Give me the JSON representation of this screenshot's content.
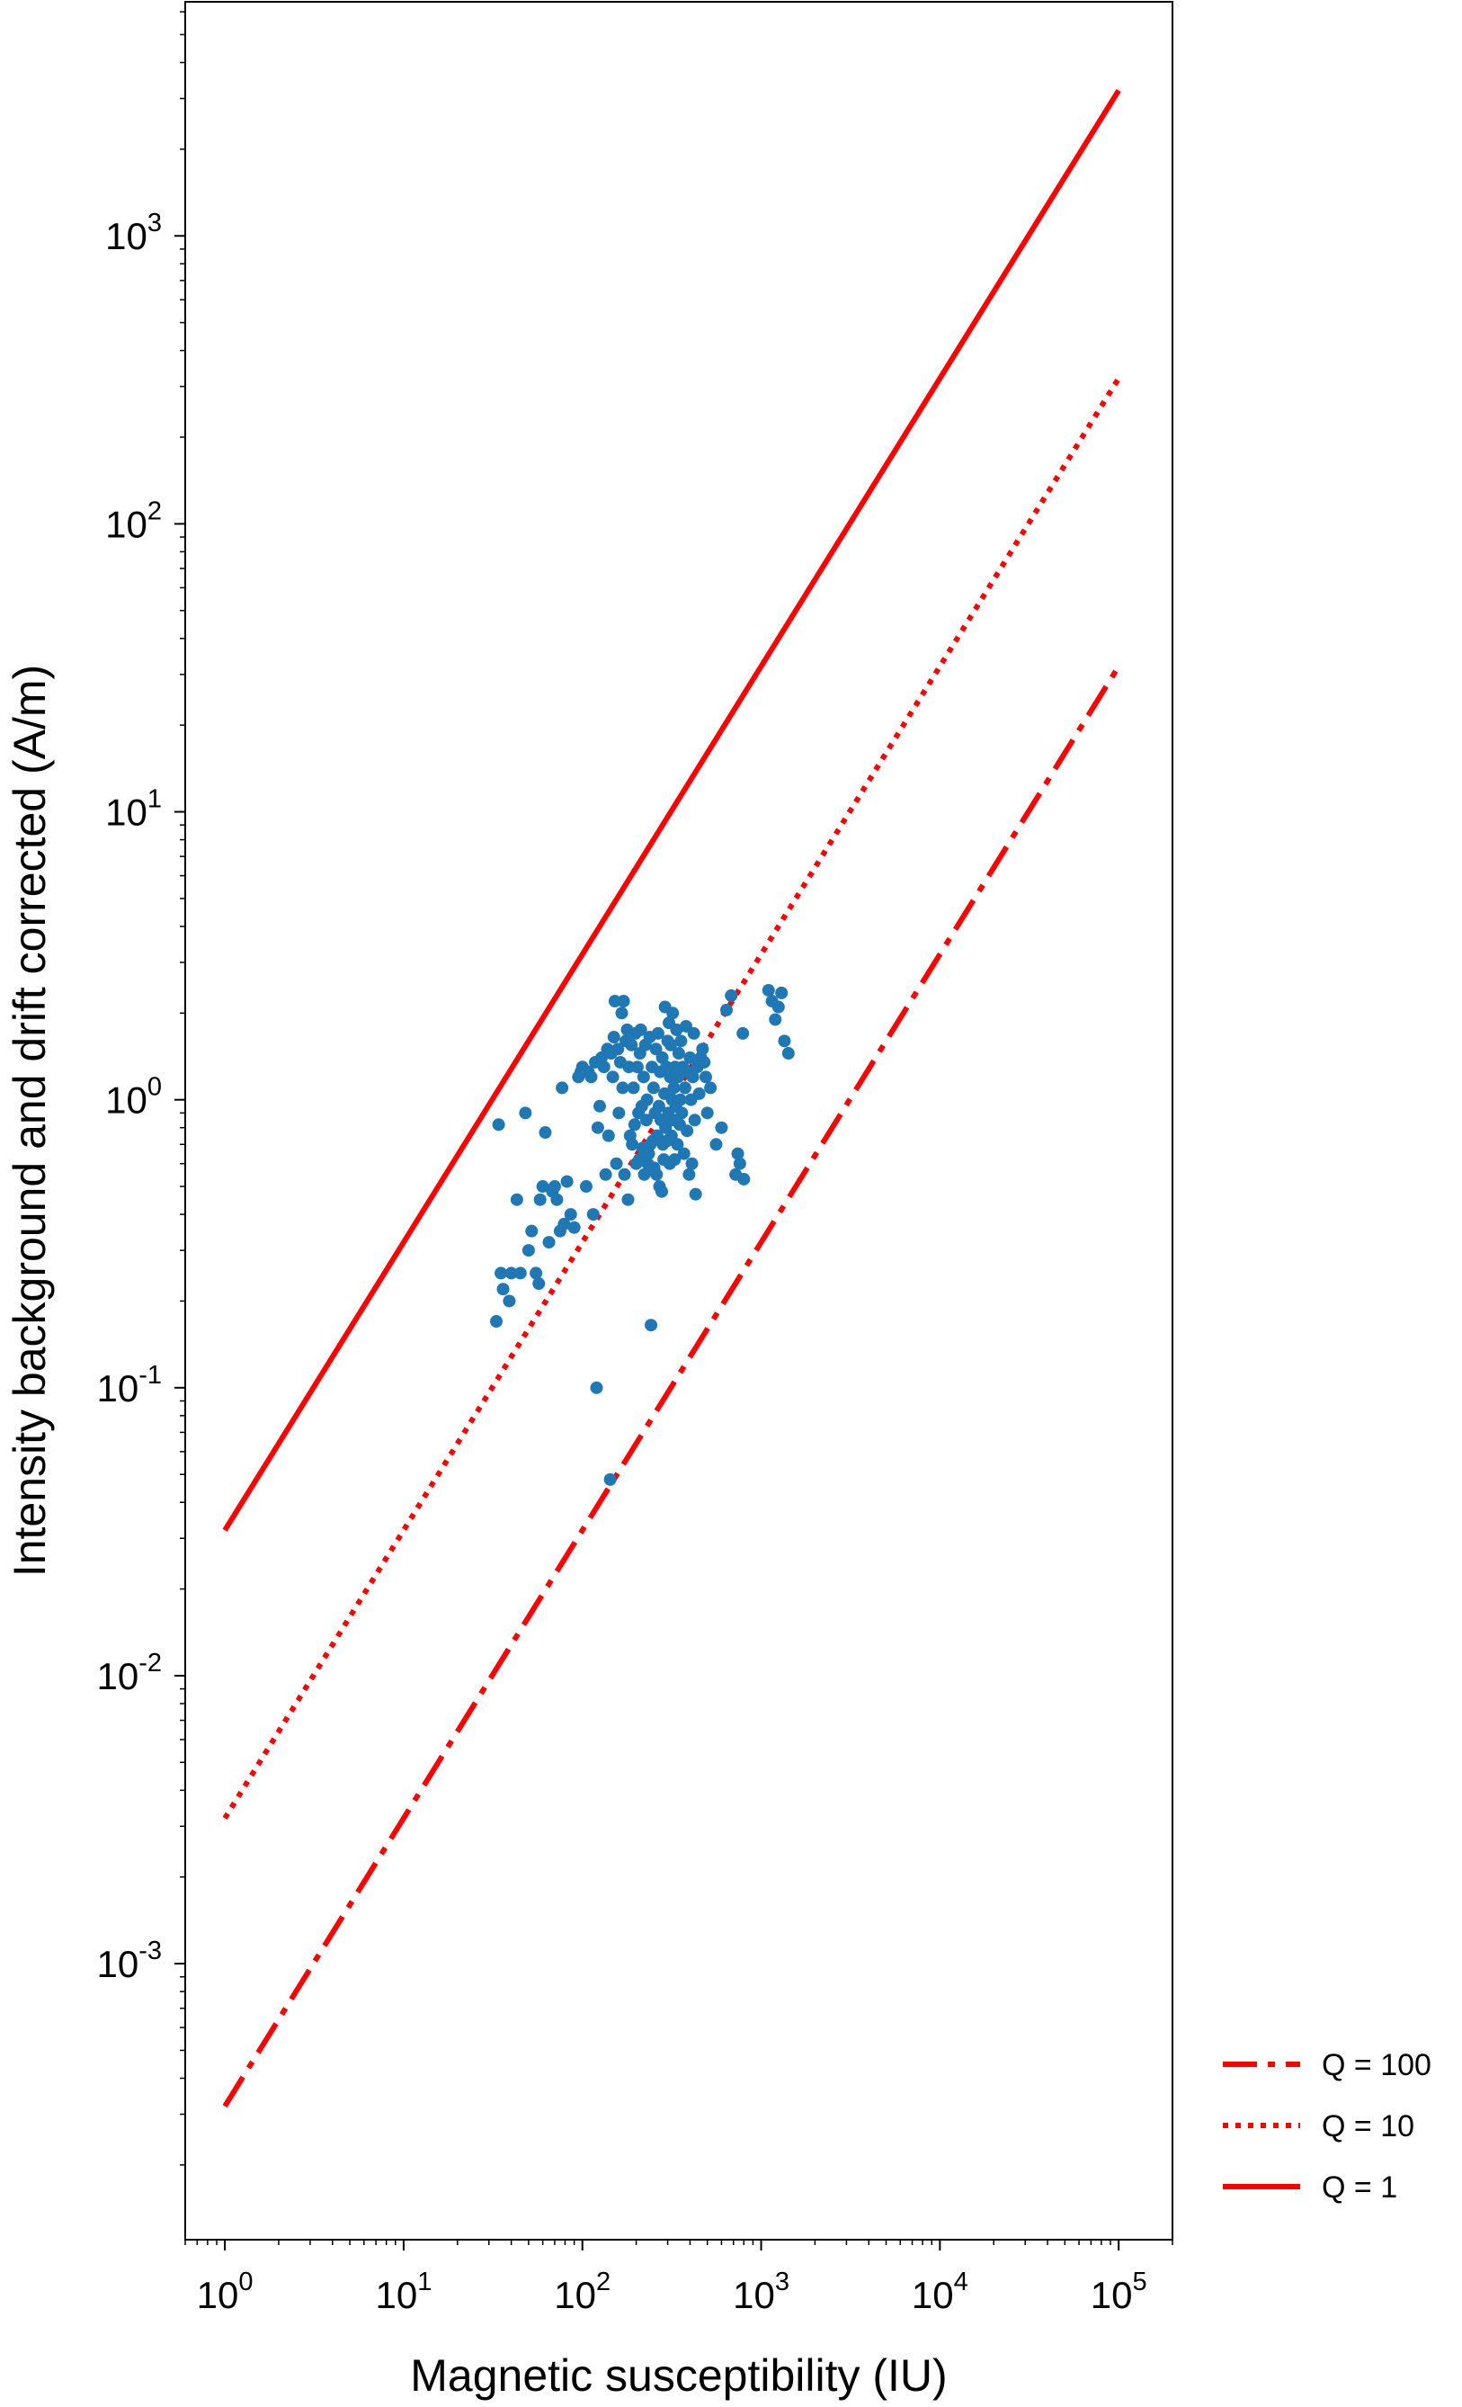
{
  "chart_data": {
    "type": "scatter",
    "title": "",
    "xlabel": "Magnetic susceptibility (IU)",
    "ylabel": "Intensity background and drift corrected (A/m)",
    "xscale": "log",
    "yscale": "log",
    "xlim": [
      0.6,
      200000
    ],
    "ylim": [
      0.00011,
      6500
    ],
    "x_ticks": [
      {
        "value": 1,
        "base": "10",
        "exp": "0"
      },
      {
        "value": 10,
        "base": "10",
        "exp": "1"
      },
      {
        "value": 100,
        "base": "10",
        "exp": "2"
      },
      {
        "value": 1000,
        "base": "10",
        "exp": "3"
      },
      {
        "value": 10000,
        "base": "10",
        "exp": "4"
      },
      {
        "value": 100000,
        "base": "10",
        "exp": "5"
      }
    ],
    "y_ticks": [
      {
        "value": 0.001,
        "base": "10",
        "exp": "-3"
      },
      {
        "value": 0.01,
        "base": "10",
        "exp": "-2"
      },
      {
        "value": 0.1,
        "base": "10",
        "exp": "-1"
      },
      {
        "value": 1,
        "base": "10",
        "exp": "0"
      },
      {
        "value": 10,
        "base": "10",
        "exp": "1"
      },
      {
        "value": 100,
        "base": "10",
        "exp": "2"
      },
      {
        "value": 1000,
        "base": "10",
        "exp": "3"
      }
    ],
    "grid": false,
    "legend_position": "outside-bottom-right",
    "lines": [
      {
        "name": "Q = 100",
        "style": "dashdot",
        "color": "#ff0000",
        "x": [
          1,
          100000
        ],
        "y": [
          0.00032,
          32
        ]
      },
      {
        "name": "Q = 10",
        "style": "dotted",
        "color": "#ff0000",
        "x": [
          1,
          100000
        ],
        "y": [
          0.0032,
          320
        ]
      },
      {
        "name": "Q = 1",
        "style": "solid",
        "color": "#ff0000",
        "x": [
          1,
          100000
        ],
        "y": [
          0.032,
          3200
        ]
      }
    ],
    "scatter": {
      "color": "#1f77b4",
      "points": [
        [
          33,
          0.17
        ],
        [
          34,
          0.82
        ],
        [
          35,
          0.25
        ],
        [
          36,
          0.22
        ],
        [
          39,
          0.2
        ],
        [
          40,
          0.25
        ],
        [
          43,
          0.45
        ],
        [
          45,
          0.25
        ],
        [
          48,
          0.9
        ],
        [
          50,
          0.3
        ],
        [
          52,
          0.35
        ],
        [
          55,
          0.25
        ],
        [
          57,
          0.23
        ],
        [
          58,
          0.45
        ],
        [
          60,
          0.5
        ],
        [
          62,
          0.77
        ],
        [
          65,
          0.32
        ],
        [
          68,
          0.48
        ],
        [
          70,
          0.5
        ],
        [
          72,
          0.45
        ],
        [
          75,
          0.35
        ],
        [
          77,
          1.1
        ],
        [
          79,
          0.37
        ],
        [
          82,
          0.52
        ],
        [
          86,
          0.4
        ],
        [
          90,
          0.36
        ],
        [
          95,
          1.2
        ],
        [
          98,
          1.25
        ],
        [
          100,
          1.3
        ],
        [
          105,
          0.5
        ],
        [
          108,
          1.25
        ],
        [
          112,
          1.2
        ],
        [
          115,
          0.4
        ],
        [
          118,
          1.35
        ],
        [
          120,
          0.1
        ],
        [
          122,
          0.8
        ],
        [
          125,
          0.95
        ],
        [
          128,
          1.4
        ],
        [
          132,
          1.3
        ],
        [
          135,
          0.55
        ],
        [
          138,
          1.5
        ],
        [
          140,
          0.75
        ],
        [
          143,
          0.048
        ],
        [
          145,
          1.45
        ],
        [
          148,
          1.2
        ],
        [
          150,
          1.65
        ],
        [
          152,
          2.2
        ],
        [
          155,
          0.6
        ],
        [
          158,
          1.5
        ],
        [
          160,
          0.9
        ],
        [
          163,
          1.35
        ],
        [
          166,
          2.0
        ],
        [
          168,
          1.1
        ],
        [
          170,
          2.2
        ],
        [
          172,
          0.55
        ],
        [
          175,
          1.6
        ],
        [
          178,
          1.75
        ],
        [
          180,
          0.45
        ],
        [
          182,
          1.3
        ],
        [
          185,
          0.75
        ],
        [
          188,
          1.55
        ],
        [
          190,
          0.7
        ],
        [
          193,
          1.1
        ],
        [
          196,
          0.82
        ],
        [
          198,
          1.7
        ],
        [
          200,
          0.6
        ],
        [
          203,
          1.3
        ],
        [
          206,
          0.9
        ],
        [
          208,
          0.62
        ],
        [
          210,
          1.45
        ],
        [
          212,
          1.75
        ],
        [
          215,
          0.95
        ],
        [
          218,
          0.68
        ],
        [
          220,
          1.2
        ],
        [
          222,
          0.55
        ],
        [
          225,
          1.55
        ],
        [
          228,
          0.85
        ],
        [
          230,
          1.0
        ],
        [
          232,
          0.6
        ],
        [
          235,
          0.65
        ],
        [
          238,
          1.65
        ],
        [
          240,
          0.7
        ],
        [
          242,
          0.165
        ],
        [
          245,
          1.3
        ],
        [
          248,
          0.72
        ],
        [
          250,
          1.1
        ],
        [
          252,
          0.58
        ],
        [
          255,
          0.9
        ],
        [
          258,
          1.5
        ],
        [
          260,
          0.55
        ],
        [
          262,
          0.75
        ],
        [
          265,
          1.7
        ],
        [
          268,
          0.95
        ],
        [
          270,
          0.5
        ],
        [
          272,
          1.25
        ],
        [
          275,
          0.85
        ],
        [
          278,
          0.48
        ],
        [
          280,
          1.4
        ],
        [
          282,
          0.7
        ],
        [
          285,
          0.62
        ],
        [
          288,
          1.05
        ],
        [
          290,
          2.1
        ],
        [
          292,
          0.8
        ],
        [
          295,
          1.3
        ],
        [
          298,
          0.72
        ],
        [
          300,
          1.6
        ],
        [
          303,
          0.9
        ],
        [
          305,
          1.85
        ],
        [
          308,
          0.6
        ],
        [
          310,
          1.2
        ],
        [
          312,
          1.55
        ],
        [
          315,
          0.75
        ],
        [
          318,
          1.0
        ],
        [
          320,
          2.0
        ],
        [
          322,
          0.85
        ],
        [
          325,
          1.1
        ],
        [
          328,
          0.62
        ],
        [
          330,
          1.3
        ],
        [
          333,
          0.95
        ],
        [
          336,
          1.75
        ],
        [
          340,
          0.7
        ],
        [
          343,
          1.2
        ],
        [
          346,
          1.45
        ],
        [
          350,
          0.82
        ],
        [
          353,
          1.0
        ],
        [
          356,
          1.6
        ],
        [
          360,
          0.9
        ],
        [
          365,
          1.3
        ],
        [
          370,
          0.65
        ],
        [
          375,
          1.1
        ],
        [
          380,
          1.8
        ],
        [
          385,
          0.78
        ],
        [
          390,
          1.25
        ],
        [
          395,
          0.55
        ],
        [
          400,
          1.4
        ],
        [
          405,
          1.0
        ],
        [
          410,
          0.6
        ],
        [
          415,
          1.2
        ],
        [
          420,
          1.7
        ],
        [
          425,
          0.85
        ],
        [
          430,
          0.47
        ],
        [
          440,
          1.3
        ],
        [
          450,
          1.05
        ],
        [
          460,
          1.4
        ],
        [
          470,
          1.5
        ],
        [
          480,
          1.35
        ],
        [
          490,
          1.2
        ],
        [
          500,
          0.9
        ],
        [
          520,
          1.1
        ],
        [
          560,
          0.7
        ],
        [
          600,
          0.8
        ],
        [
          640,
          2.05
        ],
        [
          680,
          2.3
        ],
        [
          720,
          0.55
        ],
        [
          740,
          0.65
        ],
        [
          760,
          0.6
        ],
        [
          790,
          1.7
        ],
        [
          800,
          0.53
        ],
        [
          1100,
          2.4
        ],
        [
          1150,
          2.2
        ],
        [
          1200,
          1.9
        ],
        [
          1250,
          2.1
        ],
        [
          1300,
          2.35
        ],
        [
          1350,
          1.6
        ],
        [
          1420,
          1.45
        ]
      ]
    }
  }
}
